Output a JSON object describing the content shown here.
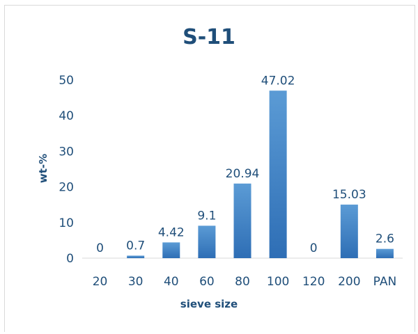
{
  "chart_data": {
    "type": "bar",
    "title": "S-11",
    "xlabel": "sieve size",
    "ylabel": "wt-%",
    "categories": [
      "20",
      "30",
      "40",
      "60",
      "80",
      "100",
      "120",
      "200",
      "PAN"
    ],
    "values": [
      0,
      0.7,
      4.42,
      9.1,
      20.94,
      47.02,
      0,
      15.03,
      2.6
    ],
    "data_labels": [
      "0",
      "0.7",
      "4.42",
      "9.1",
      "20.94",
      "47.02",
      "0",
      "15.03",
      "2.6"
    ],
    "ylim": [
      0,
      50
    ],
    "yticks": [
      0,
      10,
      20,
      30,
      40,
      50
    ],
    "grid": false,
    "legend": "none",
    "colors": {
      "bar_top": "#5b9bd5",
      "bar_bottom": "#2e6eb5",
      "text": "#1f4e79",
      "axis": "#d9d9d9"
    }
  }
}
